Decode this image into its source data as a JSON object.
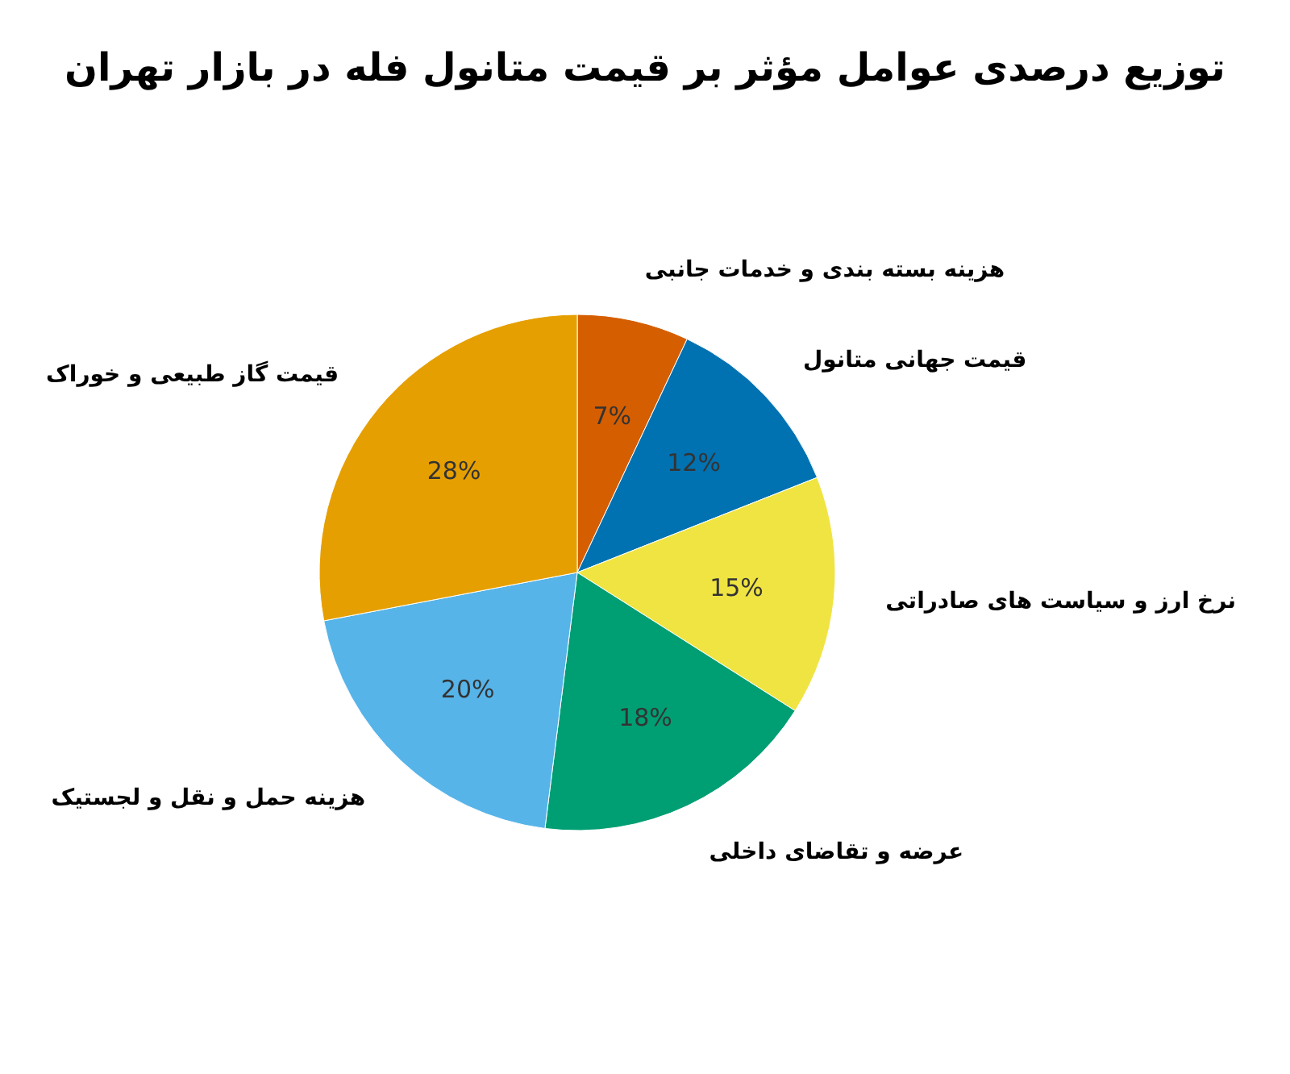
{
  "chart_data": {
    "type": "pie",
    "title": "توزیع درصدی عوامل مؤثر بر قیمت متانول فله در بازار تهران",
    "categories": [
      "هزینه بسته بندی و خدمات جانبی",
      "قیمت جهانی متانول",
      "نرخ ارز و سیاست های صادراتی",
      "عرضه و تقاضای داخلی",
      "هزینه حمل و نقل و لجستیک",
      "قیمت گاز طبیعی و خوراک"
    ],
    "values": [
      7,
      12,
      15,
      18,
      20,
      28
    ],
    "value_labels": [
      "7%",
      "12%",
      "15%",
      "18%",
      "20%",
      "28%"
    ],
    "colors": [
      "#d55e00",
      "#0072b2",
      "#f0e442",
      "#009e73",
      "#56b4e9",
      "#e69f00"
    ]
  }
}
